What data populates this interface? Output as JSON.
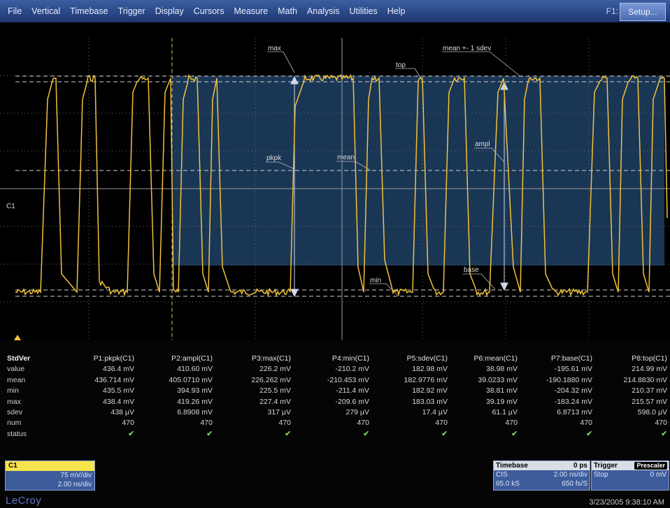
{
  "menu": [
    "File",
    "Vertical",
    "Timebase",
    "Trigger",
    "Display",
    "Cursors",
    "Measure",
    "Math",
    "Analysis",
    "Utilities",
    "Help"
  ],
  "setup": {
    "f1": "F1:",
    "button": "Setup..."
  },
  "colors": {
    "trace": "#f2c23a",
    "menubar": "#2a4a8e",
    "region": "#1d3c5e"
  },
  "annotations": {
    "max": "max",
    "mean_sdev": "mean +- 1 sdev",
    "top": "top",
    "pkpk": "pkpk",
    "mean": "mean",
    "ampl": "ampl",
    "min": "min",
    "base": "base"
  },
  "channel_marker": "C1",
  "table": {
    "title": "StdVer",
    "columns": [
      "P1:pkpk(C1)",
      "P2:ampl(C1)",
      "P3:max(C1)",
      "P4:min(C1)",
      "P5:sdev(C1)",
      "P6:mean(C1)",
      "P7:base(C1)",
      "P8:top(C1)"
    ],
    "rows": [
      {
        "label": "value",
        "cells": [
          "436.4 mV",
          "410.60 mV",
          "226.2 mV",
          "-210.2 mV",
          "182.98 mV",
          "38.98 mV",
          "-195.61 mV",
          "214.99 mV"
        ]
      },
      {
        "label": "mean",
        "cells": [
          "436.714 mV",
          "405.0710 mV",
          "226.262 mV",
          "-210.453 mV",
          "182.9776 mV",
          "39.0233 mV",
          "-190.1880 mV",
          "214.8830 mV"
        ]
      },
      {
        "label": "min",
        "cells": [
          "435.5 mV",
          "394.93 mV",
          "225.5 mV",
          "-211.4 mV",
          "182.92 mV",
          "38.81 mV",
          "-204.32 mV",
          "210.37 mV"
        ]
      },
      {
        "label": "max",
        "cells": [
          "438.4 mV",
          "419.26 mV",
          "227.4 mV",
          "-209.6 mV",
          "183.03 mV",
          "39.19 mV",
          "-183.24 mV",
          "215.57 mV"
        ]
      },
      {
        "label": "sdev",
        "cells": [
          "438 µV",
          "6.8908 mV",
          "317 µV",
          "279 µV",
          "17.4 µV",
          "61.1 µV",
          "6.8713 mV",
          "598.0 µV"
        ]
      },
      {
        "label": "num",
        "cells": [
          "470",
          "470",
          "470",
          "470",
          "470",
          "470",
          "470",
          "470"
        ]
      },
      {
        "label": "status",
        "cells": [
          "✔",
          "✔",
          "✔",
          "✔",
          "✔",
          "✔",
          "✔",
          "✔"
        ]
      }
    ]
  },
  "c1_box": {
    "title": "C1",
    "vdiv": "75 mV/div",
    "tdiv": "2.00 ns/div"
  },
  "timebase_box": {
    "title": "Timebase",
    "delay": "0 ps",
    "mode": "CIS",
    "tdiv": "2.00 ns/div",
    "samples": "65.0 kS",
    "rate": "650 fs/S"
  },
  "trigger_box": {
    "title": "Trigger",
    "badge": "Prescaler",
    "mode": "Stop",
    "level": "0 mV"
  },
  "logo": "LeCroy",
  "datetime": "3/23/2005 9:38:10 AM"
}
